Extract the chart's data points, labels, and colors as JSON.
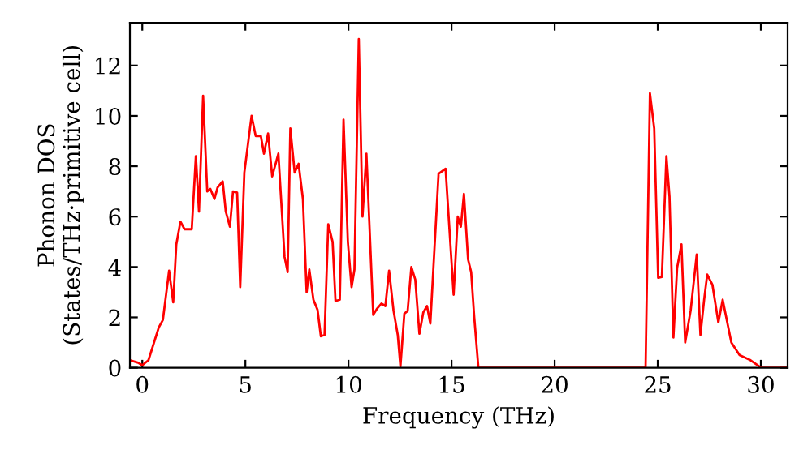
{
  "chart_data": {
    "type": "line",
    "xlabel": "Frequency (THz)",
    "ylabel": "Phonon DOS\n(States/THz·primitive cell)",
    "xlim": [
      -0.6,
      31.3
    ],
    "ylim": [
      0,
      13.7
    ],
    "xticks": [
      0,
      5,
      10,
      15,
      20,
      25,
      30
    ],
    "yticks": [
      0,
      2,
      4,
      6,
      8,
      10,
      12
    ],
    "grid": false,
    "legend": false,
    "series": [
      {
        "color": "#ff0000",
        "x": [
          -0.6,
          -0.2,
          0.0,
          0.3,
          0.8,
          1.0,
          1.3,
          1.5,
          1.65,
          1.85,
          2.05,
          2.4,
          2.6,
          2.75,
          2.95,
          3.15,
          3.3,
          3.5,
          3.65,
          3.9,
          4.05,
          4.25,
          4.4,
          4.6,
          4.75,
          4.95,
          5.3,
          5.5,
          5.75,
          5.9,
          6.1,
          6.3,
          6.6,
          6.9,
          7.05,
          7.18,
          7.39,
          7.58,
          7.79,
          7.97,
          8.1,
          8.3,
          8.5,
          8.66,
          8.84,
          9.02,
          9.23,
          9.37,
          9.58,
          9.76,
          9.97,
          10.15,
          10.29,
          10.5,
          10.68,
          10.87,
          11.2,
          11.39,
          11.6,
          11.79,
          11.97,
          12.18,
          12.39,
          12.52,
          12.71,
          12.87,
          13.05,
          13.24,
          13.44,
          13.63,
          13.81,
          13.97,
          14.37,
          14.71,
          15.1,
          15.3,
          15.45,
          15.6,
          15.8,
          15.95,
          16.1,
          16.3,
          24.41,
          24.62,
          24.83,
          25.02,
          25.2,
          25.42,
          25.57,
          25.76,
          25.94,
          26.15,
          26.33,
          26.6,
          26.89,
          27.07,
          27.25,
          27.4,
          27.65,
          27.94,
          28.15,
          28.57,
          28.97,
          29.5,
          30.02,
          31.3
        ],
        "values": [
          0.3,
          0.2,
          0.1,
          0.3,
          1.6,
          1.9,
          3.85,
          2.6,
          4.9,
          5.8,
          5.5,
          5.5,
          8.4,
          6.2,
          10.8,
          7.0,
          7.1,
          6.7,
          7.15,
          7.4,
          6.2,
          5.6,
          7.0,
          6.95,
          3.2,
          7.75,
          10.0,
          9.2,
          9.2,
          8.5,
          9.3,
          7.6,
          8.5,
          4.4,
          3.8,
          9.5,
          7.75,
          8.1,
          6.7,
          3.0,
          3.9,
          2.7,
          2.3,
          1.25,
          1.3,
          5.7,
          5.0,
          2.65,
          2.7,
          9.85,
          5.0,
          3.2,
          3.9,
          13.05,
          6.0,
          8.5,
          2.1,
          2.35,
          2.55,
          2.45,
          3.85,
          2.3,
          1.3,
          0.05,
          2.15,
          2.25,
          4.0,
          3.5,
          1.35,
          2.2,
          2.45,
          1.75,
          7.7,
          7.9,
          2.9,
          6.0,
          5.6,
          6.9,
          4.3,
          3.8,
          2.0,
          0.0,
          0.0,
          10.9,
          9.5,
          3.57,
          3.6,
          8.4,
          6.8,
          1.2,
          3.96,
          4.9,
          1.0,
          2.3,
          4.5,
          1.3,
          2.7,
          3.7,
          3.3,
          1.8,
          2.7,
          1.0,
          0.5,
          0.3,
          0.0,
          0.0
        ]
      }
    ]
  }
}
